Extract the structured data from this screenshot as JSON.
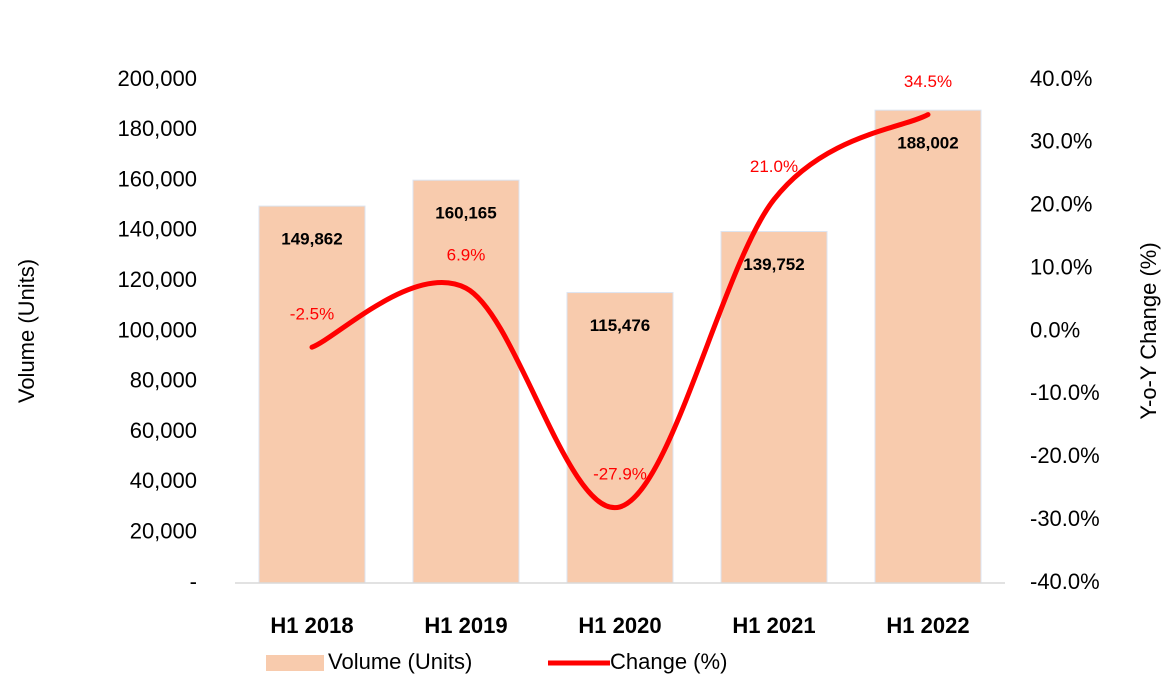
{
  "chart_data": {
    "type": "bar",
    "categories": [
      "H1 2018",
      "H1 2019",
      "H1 2020",
      "H1 2021",
      "H1 2022"
    ],
    "series": [
      {
        "name": "Volume (Units)",
        "type": "bar",
        "color": "#f8cbad",
        "axis": "y",
        "values": [
          149862,
          160165,
          115476,
          139752,
          188002
        ],
        "value_labels": [
          "149,862",
          "160,165",
          "115,476",
          "139,752",
          "188,002"
        ]
      },
      {
        "name": "Change (%)",
        "type": "line",
        "color": "#ff0000",
        "axis": "y2",
        "values": [
          -2.5,
          6.9,
          -27.9,
          21.0,
          34.5
        ],
        "value_labels": [
          "-2.5%",
          "6.9%",
          "-27.9%",
          "21.0%",
          "34.5%"
        ]
      }
    ],
    "ylabel": "Volume (Units)",
    "y2label": "Y-o-Y Change (%)",
    "ylim": [
      0,
      200000
    ],
    "yticks": [
      {
        "value": 0,
        "label": "-"
      },
      {
        "value": 20000,
        "label": "20,000"
      },
      {
        "value": 40000,
        "label": "40,000"
      },
      {
        "value": 60000,
        "label": "60,000"
      },
      {
        "value": 80000,
        "label": "80,000"
      },
      {
        "value": 100000,
        "label": "100,000"
      },
      {
        "value": 120000,
        "label": "120,000"
      },
      {
        "value": 140000,
        "label": "140,000"
      },
      {
        "value": 160000,
        "label": "160,000"
      },
      {
        "value": 180000,
        "label": "180,000"
      },
      {
        "value": 200000,
        "label": "200,000"
      }
    ],
    "y2lim": [
      -40,
      40
    ],
    "y2ticks": [
      {
        "value": -40,
        "label": "-40.0%"
      },
      {
        "value": -30,
        "label": "-30.0%"
      },
      {
        "value": -20,
        "label": "-20.0%"
      },
      {
        "value": -10,
        "label": "-10.0%"
      },
      {
        "value": 0,
        "label": "0.0%"
      },
      {
        "value": 10,
        "label": "10.0%"
      },
      {
        "value": 20,
        "label": "20.0%"
      },
      {
        "value": 30,
        "label": "30.0%"
      },
      {
        "value": 40,
        "label": "40.0%"
      }
    ],
    "legend": "bottom",
    "grid": false
  }
}
